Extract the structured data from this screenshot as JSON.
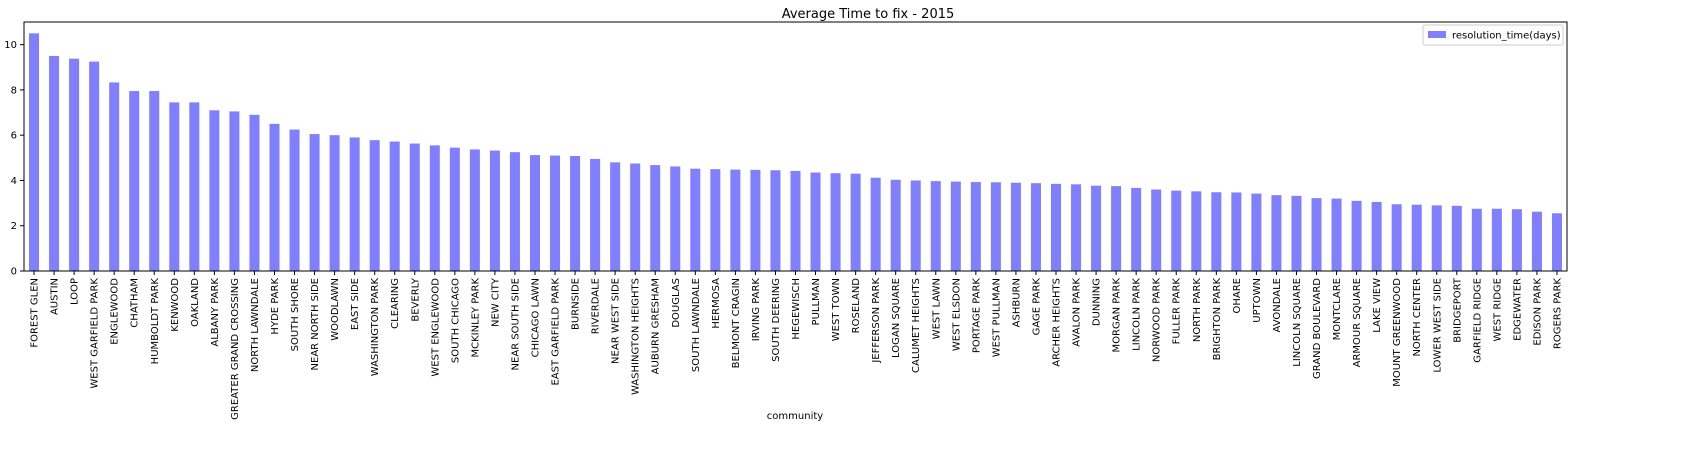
{
  "chart_data": {
    "type": "bar",
    "title": "Average Time to fix - 2015",
    "xlabel": "community",
    "ylabel": "",
    "ylim": [
      0,
      11
    ],
    "yticks": [
      0,
      2,
      4,
      6,
      8,
      10
    ],
    "grid": false,
    "legend_position": "top-right",
    "colors": {
      "bar": "#8080ff",
      "axis": "#000000"
    },
    "series": [
      {
        "name": "resolution_time(days)"
      }
    ],
    "categories": [
      "FOREST GLEN",
      "AUSTIN",
      "LOOP",
      "WEST GARFIELD PARK",
      "ENGLEWOOD",
      "CHATHAM",
      "HUMBOLDT PARK",
      "KENWOOD",
      "OAKLAND",
      "ALBANY PARK",
      "GREATER GRAND CROSSING",
      "NORTH LAWNDALE",
      "HYDE PARK",
      "SOUTH SHORE",
      "NEAR NORTH SIDE",
      "WOODLAWN",
      "EAST SIDE",
      "WASHINGTON PARK",
      "CLEARING",
      "BEVERLY",
      "WEST ENGLEWOOD",
      "SOUTH CHICAGO",
      "MCKINLEY PARK",
      "NEW CITY",
      "NEAR SOUTH SIDE",
      "CHICAGO LAWN",
      "EAST GARFIELD PARK",
      "BURNSIDE",
      "RIVERDALE",
      "NEAR WEST SIDE",
      "WASHINGTON HEIGHTS",
      "AUBURN GRESHAM",
      "DOUGLAS",
      "SOUTH LAWNDALE",
      "HERMOSA",
      "BELMONT CRAGIN",
      "IRVING PARK",
      "SOUTH DEERING",
      "HEGEWISCH",
      "PULLMAN",
      "WEST TOWN",
      "ROSELAND",
      "JEFFERSON PARK",
      "LOGAN SQUARE",
      "CALUMET HEIGHTS",
      "WEST LAWN",
      "WEST ELSDON",
      "PORTAGE PARK",
      "WEST PULLMAN",
      "ASHBURN",
      "GAGE PARK",
      "ARCHER HEIGHTS",
      "AVALON PARK",
      "DUNNING",
      "MORGAN PARK",
      "LINCOLN PARK",
      "NORWOOD PARK",
      "FULLER PARK",
      "NORTH PARK",
      "BRIGHTON PARK",
      "OHARE",
      "UPTOWN",
      "AVONDALE",
      "LINCOLN SQUARE",
      "GRAND BOULEVARD",
      "MONTCLARE",
      "ARMOUR SQUARE",
      "LAKE VIEW",
      "MOUNT GREENWOOD",
      "NORTH CENTER",
      "LOWER WEST SIDE",
      "BRIDGEPORT",
      "GARFIELD RIDGE",
      "WEST RIDGE",
      "EDGEWATER",
      "EDISON PARK",
      "ROGERS PARK"
    ],
    "values": [
      10.5,
      9.5,
      9.38,
      9.25,
      8.33,
      7.95,
      7.95,
      7.45,
      7.45,
      7.1,
      7.05,
      6.9,
      6.5,
      6.25,
      6.05,
      6.0,
      5.9,
      5.78,
      5.72,
      5.63,
      5.55,
      5.45,
      5.37,
      5.32,
      5.25,
      5.12,
      5.1,
      5.08,
      4.95,
      4.8,
      4.75,
      4.68,
      4.62,
      4.52,
      4.5,
      4.48,
      4.47,
      4.45,
      4.42,
      4.35,
      4.32,
      4.3,
      4.12,
      4.03,
      4.0,
      3.97,
      3.95,
      3.93,
      3.92,
      3.9,
      3.88,
      3.85,
      3.83,
      3.77,
      3.75,
      3.67,
      3.6,
      3.55,
      3.52,
      3.48,
      3.47,
      3.42,
      3.35,
      3.32,
      3.22,
      3.2,
      3.1,
      3.05,
      2.95,
      2.93,
      2.9,
      2.88,
      2.75,
      2.75,
      2.73,
      2.62,
      2.55
    ]
  }
}
